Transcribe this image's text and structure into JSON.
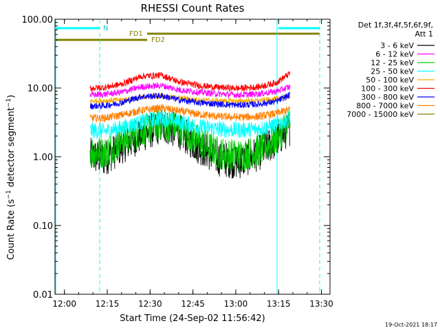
{
  "chart_data": {
    "type": "line",
    "title": "RHESSI Count Rates",
    "xlabel": "Start Time (24-Sep-02 11:56:42)",
    "ylabel_parts": [
      "Count Rate (s",
      "−1",
      " detector segment",
      "−1",
      ")"
    ],
    "y_scale": "log",
    "ylim": [
      0.01,
      100
    ],
    "xlim": [
      "11:56:42",
      "13:33:00"
    ],
    "x_ticks": [
      "12:00",
      "12:15",
      "12:30",
      "12:45",
      "13:00",
      "13:15",
      "13:30"
    ],
    "y_ticks": [
      "100.00",
      "10.00",
      "1.00",
      "0.10",
      "0.01"
    ],
    "legend_header": [
      "Det 1f,3f,4f,5f,6f,9f,",
      "Att 1"
    ],
    "legend_position": "outside-right",
    "flag_labels": [
      "N",
      "FD1",
      "FD2"
    ],
    "series": [
      {
        "name": "3 - 6 keV",
        "color": "#000000",
        "values": [
          1.1,
          1.0,
          1.5,
          2.2,
          3.0,
          2.5,
          1.5,
          1.0,
          0.9,
          1.2,
          1.8,
          2.8
        ]
      },
      {
        "name": "6 - 12 keV",
        "color": "#ff00ff",
        "values": [
          8.0,
          8.2,
          8.8,
          10.5,
          11.0,
          9.5,
          8.8,
          8.3,
          8.0,
          8.3,
          9.0,
          10.5
        ]
      },
      {
        "name": "12 - 25 keV",
        "color": "#00cc00",
        "values": [
          1.3,
          1.2,
          1.8,
          2.5,
          3.2,
          2.8,
          1.8,
          1.2,
          1.1,
          1.3,
          1.9,
          3.5
        ]
      },
      {
        "name": "25 - 50 keV",
        "color": "#00ffff",
        "values": [
          2.5,
          2.4,
          2.7,
          3.3,
          3.8,
          3.3,
          2.8,
          2.6,
          2.5,
          2.6,
          3.0,
          3.8
        ]
      },
      {
        "name": "50 - 100 keV",
        "color": "#ffaa00",
        "values": [
          6.5,
          6.6,
          6.8,
          7.4,
          7.8,
          7.2,
          6.8,
          6.6,
          6.5,
          6.6,
          7.0,
          7.8
        ]
      },
      {
        "name": "100 - 300 keV",
        "color": "#ff0000",
        "values": [
          10.0,
          10.3,
          11.5,
          15.0,
          15.5,
          12.5,
          11.0,
          10.3,
          10.0,
          10.5,
          12.0,
          16.5
        ]
      },
      {
        "name": "300 - 800 keV",
        "color": "#0000ff",
        "values": [
          5.5,
          5.6,
          6.2,
          7.6,
          7.8,
          6.8,
          6.2,
          5.9,
          5.7,
          5.9,
          6.4,
          8.0
        ]
      },
      {
        "name": "800 - 7000 keV",
        "color": "#ff8000",
        "values": [
          3.7,
          3.7,
          4.1,
          4.8,
          5.2,
          4.7,
          4.2,
          3.9,
          3.8,
          3.9,
          4.3,
          5.0
        ]
      },
      {
        "name": "7000 - 15000 keV",
        "color": "#808000",
        "values": [
          null,
          null,
          null,
          null,
          null,
          null,
          null,
          null,
          null,
          null,
          null,
          null
        ]
      }
    ],
    "series_times": [
      "12:09",
      "12:14",
      "12:20",
      "12:27",
      "12:34",
      "12:40",
      "12:47",
      "12:54",
      "13:01",
      "13:08",
      "13:14",
      "13:19"
    ],
    "footer_timestamp": "19-Oct-2021 18:17"
  }
}
